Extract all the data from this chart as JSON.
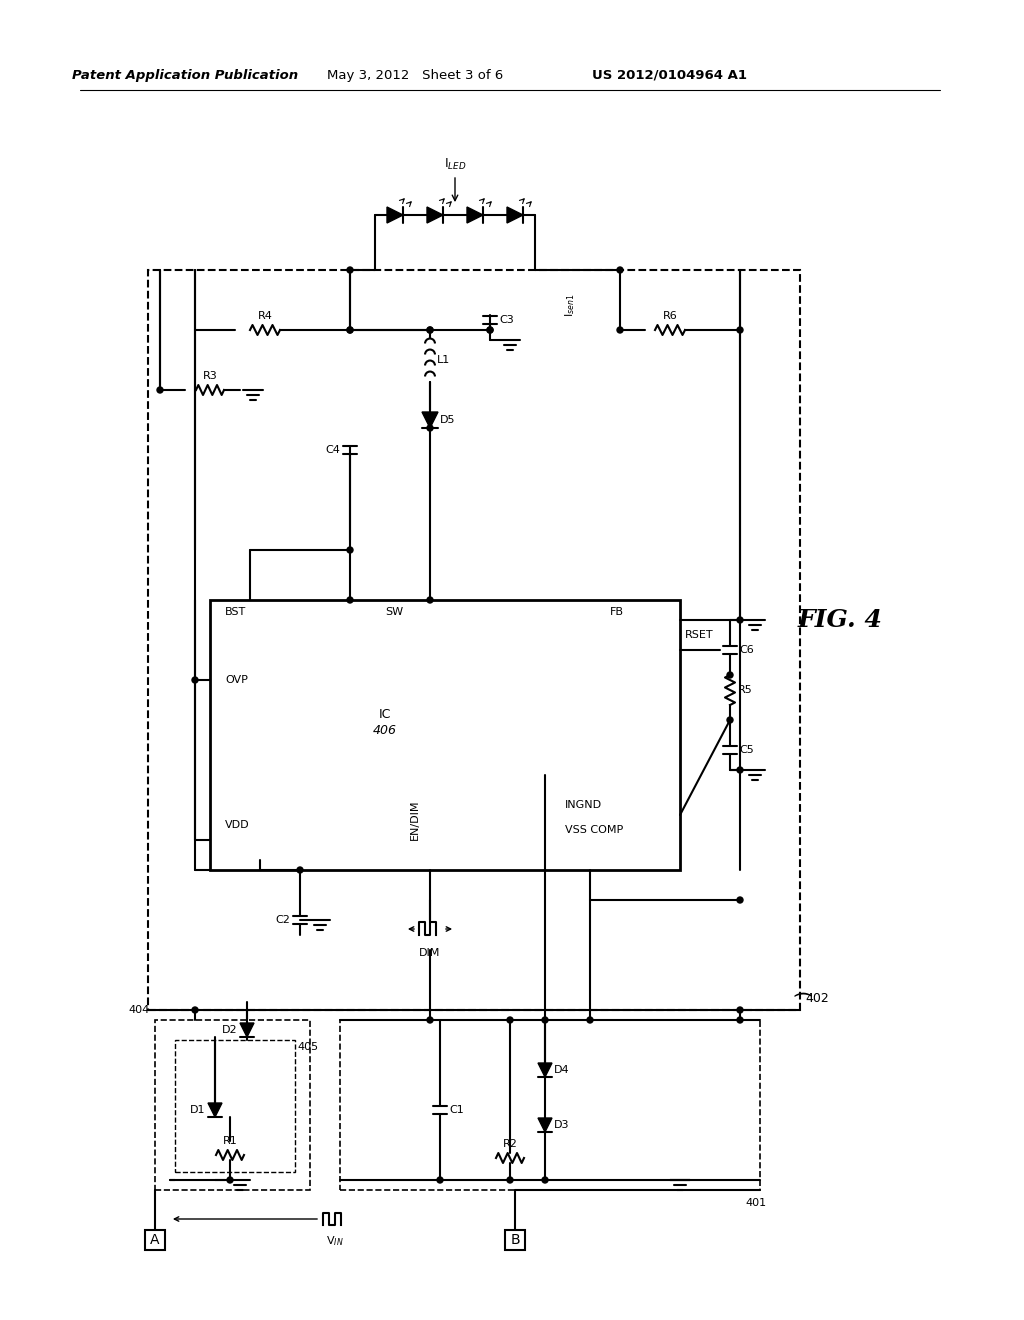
{
  "header_left": "Patent Application Publication",
  "header_center": "May 3, 2012   Sheet 3 of 6",
  "header_right": "US 2012/0104964 A1",
  "fig_label": "FIG. 4",
  "bg_color": "#ffffff"
}
